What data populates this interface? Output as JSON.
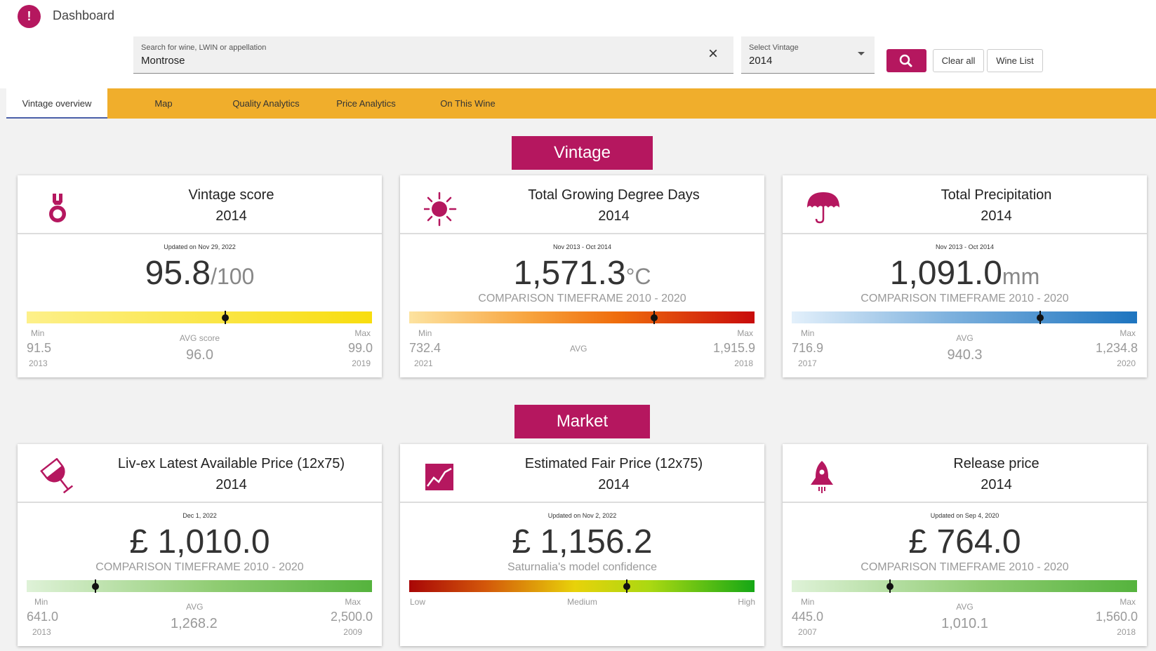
{
  "app": {
    "logo_glyph": "!",
    "title": "Dashboard"
  },
  "search": {
    "label": "Search for wine, LWIN or appellation",
    "value": "Montrose"
  },
  "vintage_select": {
    "label": "Select Vintage",
    "value": "2014"
  },
  "buttons": {
    "clear_all": "Clear all",
    "wine_list": "Wine List"
  },
  "tabs": [
    "Vintage overview",
    "Map",
    "Quality Analytics",
    "Price Analytics",
    "On This Wine"
  ],
  "colors": {
    "brand": "#b5175f",
    "tab_bar": "#f0ae2c",
    "active_tab_underline": "#4a5fa8"
  },
  "sections": {
    "vintage": "Vintage",
    "market": "Market"
  },
  "cards": {
    "vintage_score": {
      "icon": "medal-icon",
      "title": "Vintage score",
      "year": "2014",
      "updated": "Updated on Nov 29, 2022",
      "value": "95.8",
      "unit": "/100",
      "sub": "",
      "marker_pct": 57.5,
      "min_label": "Min",
      "min_value": "91.5",
      "min_year": "2013",
      "avg_label": "AVG score",
      "avg_value": "96.0",
      "max_label": "Max",
      "max_value": "99.0",
      "max_year": "2019"
    },
    "growing_degree_days": {
      "icon": "sun-icon",
      "title": "Total Growing Degree Days",
      "year": "2014",
      "updated": "Nov 2013 - Oct 2014",
      "value": "1,571.3",
      "unit": "°C",
      "sub": "COMPARISON TIMEFRAME 2010 - 2020",
      "marker_pct": 71,
      "min_label": "Min",
      "min_value": "732.4",
      "min_year": "2021",
      "avg_label": "AVG",
      "avg_value": "",
      "max_label": "Max",
      "max_value": "1,915.9",
      "max_year": "2018"
    },
    "precipitation": {
      "icon": "umbrella-icon",
      "title": "Total Precipitation",
      "year": "2014",
      "updated": "Nov 2013 - Oct 2014",
      "value": "1,091.0",
      "unit": "mm",
      "sub": "COMPARISON TIMEFRAME 2010 - 2020",
      "marker_pct": 72,
      "min_label": "Min",
      "min_value": "716.9",
      "min_year": "2017",
      "avg_label": "AVG",
      "avg_value": "940.3",
      "max_label": "Max",
      "max_value": "1,234.8",
      "max_year": "2020"
    },
    "livex_price": {
      "icon": "wine-glass-icon",
      "title": "Liv-ex Latest Available Price (12x75)",
      "year": "2014",
      "updated": "Dec 1, 2022",
      "value": "£ 1,010.0",
      "unit": "",
      "sub": "COMPARISON TIMEFRAME 2010 - 2020",
      "marker_pct": 20,
      "min_label": "Min",
      "min_value": "641.0",
      "min_year": "2013",
      "avg_label": "AVG",
      "avg_value": "1,268.2",
      "max_label": "Max",
      "max_value": "2,500.0",
      "max_year": "2009"
    },
    "fair_price": {
      "icon": "trend-chart-icon",
      "title": "Estimated Fair Price (12x75)",
      "year": "2014",
      "updated": "Updated on Nov 2, 2022",
      "value": "£ 1,156.2",
      "unit": "",
      "sub": "Saturnalia's model confidence",
      "marker_pct": 63,
      "low_label": "Low",
      "medium_label": "Medium",
      "high_label": "High"
    },
    "release_price": {
      "icon": "rocket-icon",
      "title": "Release price",
      "year": "2014",
      "updated": "Updated on Sep 4, 2020",
      "value": "£ 764.0",
      "unit": "",
      "sub": "COMPARISON TIMEFRAME 2010 - 2020",
      "marker_pct": 28.5,
      "min_label": "Min",
      "min_value": "445.0",
      "min_year": "2007",
      "avg_label": "AVG",
      "avg_value": "1,010.1",
      "max_label": "Max",
      "max_value": "1,560.0",
      "max_year": "2018"
    }
  }
}
